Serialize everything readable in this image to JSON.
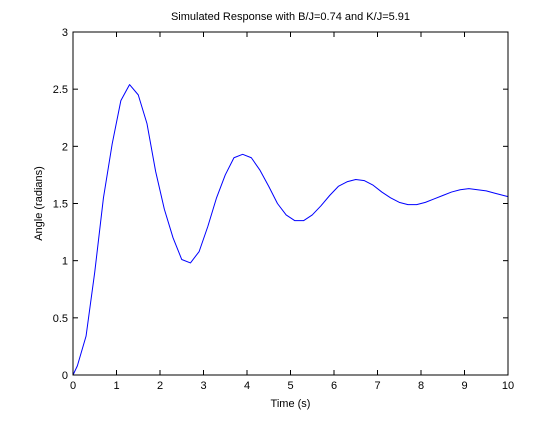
{
  "chart_data": {
    "type": "line",
    "title": "Simulated Response with B/J=0.74 and K/J=5.91",
    "xlabel": "Time (s)",
    "ylabel": "Angle (radians)",
    "xlim": [
      0,
      10
    ],
    "ylim": [
      0,
      3
    ],
    "x_ticks": [
      "0",
      "1",
      "2",
      "3",
      "4",
      "5",
      "6",
      "7",
      "8",
      "9",
      "10"
    ],
    "y_ticks": [
      "0",
      "0.5",
      "1",
      "1.5",
      "2",
      "2.5",
      "3"
    ],
    "grid": false,
    "legend": "none",
    "series": [
      {
        "color": "#0000ff",
        "x": [
          0,
          0.1,
          0.3,
          0.5,
          0.7,
          0.9,
          1.1,
          1.3,
          1.5,
          1.7,
          1.9,
          2.1,
          2.3,
          2.5,
          2.7,
          2.9,
          3.1,
          3.3,
          3.5,
          3.7,
          3.9,
          4.1,
          4.3,
          4.5,
          4.7,
          4.9,
          5.1,
          5.3,
          5.5,
          5.7,
          5.9,
          6.1,
          6.3,
          6.5,
          6.7,
          6.9,
          7.1,
          7.3,
          7.5,
          7.7,
          7.9,
          8.1,
          8.3,
          8.5,
          8.7,
          8.9,
          9.1,
          9.3,
          9.5,
          9.7,
          9.9,
          10
        ],
        "y": [
          0,
          0.08,
          0.34,
          0.9,
          1.55,
          2.02,
          2.4,
          2.54,
          2.45,
          2.2,
          1.78,
          1.45,
          1.2,
          1.01,
          0.98,
          1.08,
          1.3,
          1.55,
          1.75,
          1.9,
          1.93,
          1.9,
          1.79,
          1.65,
          1.5,
          1.4,
          1.35,
          1.35,
          1.4,
          1.48,
          1.57,
          1.65,
          1.69,
          1.71,
          1.7,
          1.66,
          1.6,
          1.55,
          1.51,
          1.49,
          1.49,
          1.51,
          1.54,
          1.57,
          1.6,
          1.62,
          1.63,
          1.62,
          1.61,
          1.59,
          1.57,
          1.56
        ]
      }
    ]
  }
}
